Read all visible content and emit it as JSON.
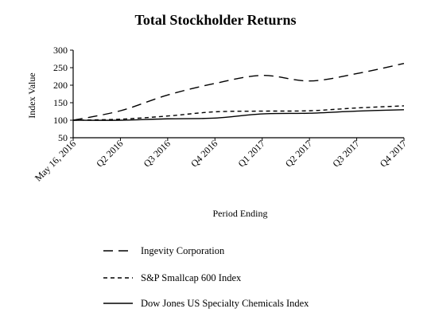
{
  "chart_data": {
    "type": "line",
    "title": "Total Stockholder Returns",
    "xlabel": "Period Ending",
    "ylabel": "Index Value",
    "categories": [
      "May 16, 2016",
      "Q2 2016",
      "Q3 2016",
      "Q4 2016",
      "Q1 2017",
      "Q2 2017",
      "Q3 2017",
      "Q4 2017"
    ],
    "yticks": [
      50,
      100,
      150,
      200,
      250,
      300
    ],
    "ylim": [
      50,
      300
    ],
    "grid": false,
    "legend_position": "bottom",
    "series": [
      {
        "name": "Ingevity Corporation",
        "style": "long-dash",
        "color": "#000000",
        "values": [
          100,
          127,
          172,
          205,
          228,
          212,
          233,
          262
        ]
      },
      {
        "name": "S&P Smallcap 600 Index",
        "style": "short-dash",
        "color": "#000000",
        "values": [
          100,
          103,
          112,
          124,
          126,
          127,
          135,
          141
        ]
      },
      {
        "name": "Dow Jones US Specialty Chemicals Index",
        "style": "solid",
        "color": "#000000",
        "values": [
          100,
          100,
          104,
          106,
          118,
          120,
          126,
          130
        ]
      }
    ]
  }
}
